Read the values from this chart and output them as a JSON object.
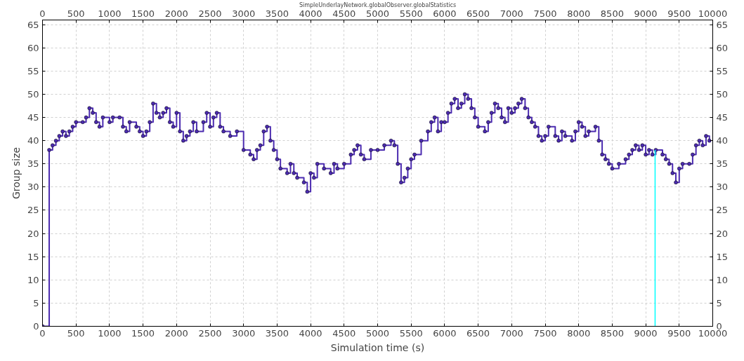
{
  "chart_data": {
    "type": "step",
    "title": "SimpleUnderlayNetwork.globalObserver.globalStatistics",
    "xlabel": "Simulation time (s)",
    "ylabel": "Group size",
    "x": [
      0,
      100,
      150,
      200,
      250,
      300,
      350,
      400,
      450,
      500,
      600,
      650,
      700,
      750,
      800,
      850,
      900,
      1000,
      1050,
      1150,
      1200,
      1250,
      1300,
      1400,
      1450,
      1500,
      1550,
      1600,
      1650,
      1700,
      1750,
      1800,
      1850,
      1900,
      1950,
      2000,
      2050,
      2100,
      2150,
      2200,
      2250,
      2300,
      2400,
      2450,
      2500,
      2550,
      2600,
      2650,
      2700,
      2800,
      2900,
      3000,
      3100,
      3150,
      3200,
      3250,
      3300,
      3350,
      3400,
      3450,
      3500,
      3550,
      3650,
      3700,
      3750,
      3800,
      3900,
      3950,
      4000,
      4050,
      4100,
      4200,
      4300,
      4350,
      4400,
      4500,
      4600,
      4650,
      4700,
      4750,
      4800,
      4900,
      5000,
      5100,
      5200,
      5250,
      5300,
      5350,
      5400,
      5450,
      5500,
      5550,
      5650,
      5750,
      5800,
      5850,
      5900,
      5950,
      6000,
      6050,
      6100,
      6150,
      6200,
      6250,
      6300,
      6350,
      6400,
      6450,
      6500,
      6600,
      6650,
      6700,
      6750,
      6800,
      6850,
      6900,
      6950,
      7000,
      7050,
      7100,
      7150,
      7200,
      7250,
      7300,
      7350,
      7400,
      7450,
      7500,
      7550,
      7650,
      7700,
      7750,
      7800,
      7900,
      7950,
      8000,
      8050,
      8100,
      8150,
      8250,
      8300,
      8350,
      8400,
      8450,
      8500,
      8600,
      8700,
      8750,
      8800,
      8850,
      8900,
      8950,
      9000,
      9050,
      9100,
      9150,
      9250,
      9300,
      9350,
      9400,
      9450,
      9500,
      9550,
      9650,
      9700,
      9750,
      9800,
      9850,
      9900,
      9950
    ],
    "series": [
      {
        "color": "#4b2bb0",
        "values": [
          0,
          38,
          39,
          40,
          41,
          42,
          41,
          42,
          43,
          44,
          44,
          45,
          47,
          46,
          44,
          43,
          45,
          44,
          45,
          45,
          43,
          42,
          44,
          43,
          42,
          41,
          42,
          44,
          48,
          46,
          45,
          46,
          47,
          44,
          43,
          46,
          42,
          40,
          41,
          42,
          44,
          42,
          44,
          46,
          43,
          45,
          46,
          43,
          42,
          41,
          42,
          38,
          37,
          36,
          38,
          39,
          42,
          43,
          40,
          38,
          36,
          34,
          33,
          35,
          33,
          32,
          31,
          29,
          33,
          32,
          35,
          34,
          33,
          35,
          34,
          35,
          37,
          38,
          39,
          37,
          36,
          38,
          38,
          39,
          40,
          39,
          35,
          31,
          32,
          34,
          36,
          37,
          40,
          42,
          44,
          45,
          42,
          44,
          44,
          46,
          48,
          49,
          47,
          48,
          50,
          49,
          47,
          45,
          43,
          42,
          44,
          46,
          48,
          47,
          45,
          44,
          47,
          46,
          47,
          48,
          49,
          47,
          45,
          44,
          43,
          41,
          40,
          41,
          43,
          41,
          40,
          42,
          41,
          40,
          42,
          44,
          43,
          41,
          42,
          43,
          40,
          37,
          36,
          35,
          34,
          35,
          36,
          37,
          38,
          39,
          38,
          39,
          37,
          38,
          37,
          38,
          37,
          36,
          35,
          33,
          31,
          34,
          35,
          35,
          37,
          39,
          40,
          39,
          41,
          40
        ]
      },
      {
        "type": "line",
        "color": "#00ffff",
        "x": [
          9140,
          9140
        ],
        "values": [
          0,
          38
        ],
        "marker": "none"
      }
    ],
    "xlim": [
      0,
      10000
    ],
    "xticks": [
      0,
      500,
      1000,
      1500,
      2000,
      2500,
      3000,
      3500,
      4000,
      4500,
      5000,
      5500,
      6000,
      6500,
      7000,
      7500,
      8000,
      8500,
      9000,
      9500,
      10000
    ],
    "x2lim": [
      0,
      10000
    ],
    "x2ticks": [
      0,
      500,
      1000,
      1500,
      2000,
      2500,
      3000,
      3500,
      4000,
      4500,
      5000,
      5500,
      6000,
      6500,
      7000,
      7500,
      8000,
      8500,
      9000,
      9500,
      10000
    ],
    "ylim": [
      0,
      66
    ],
    "yticks": [
      0,
      5,
      10,
      15,
      20,
      25,
      30,
      35,
      40,
      45,
      50,
      55,
      60,
      65
    ],
    "y2lim": [
      0,
      66
    ],
    "y2ticks": [
      0,
      5,
      10,
      15,
      20,
      25,
      30,
      35,
      40,
      45,
      50,
      55,
      60,
      65
    ],
    "grid": true,
    "marker": "circle",
    "line_style": "solid"
  }
}
